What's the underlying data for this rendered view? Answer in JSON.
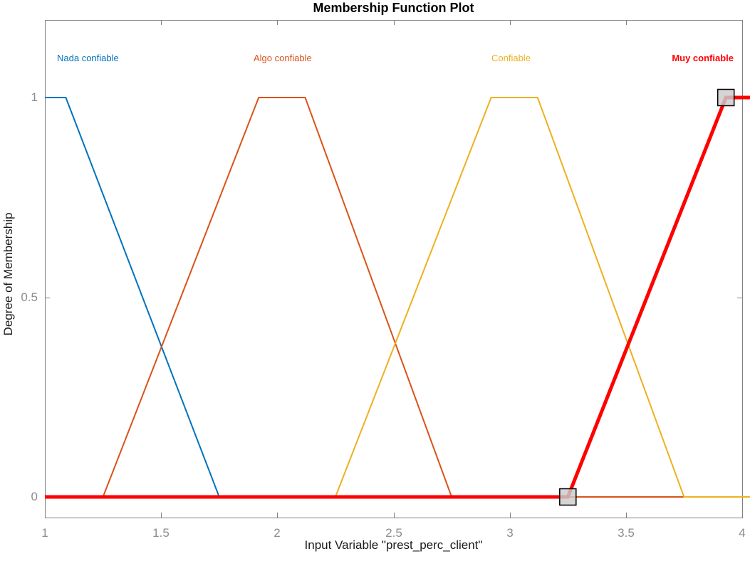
{
  "chart_data": {
    "type": "line",
    "title": "Membership Function Plot",
    "xlabel": "Input Variable \"prest_perc_client\"",
    "ylabel": "Degree of Membership",
    "xlim": [
      1,
      4
    ],
    "ylim": [
      0,
      1
    ],
    "grid": false,
    "legend_position": "labels-above-curves",
    "x_ticks": [
      {
        "v": 1,
        "label": "1"
      },
      {
        "v": 1.5,
        "label": "1.5"
      },
      {
        "v": 2,
        "label": "2"
      },
      {
        "v": 2.5,
        "label": "2.5"
      },
      {
        "v": 3,
        "label": "3"
      },
      {
        "v": 3.5,
        "label": "3.5"
      },
      {
        "v": 4,
        "label": "4"
      }
    ],
    "y_ticks": [
      {
        "v": 0,
        "label": "0"
      },
      {
        "v": 0.5,
        "label": "0.5"
      },
      {
        "v": 1,
        "label": "1"
      }
    ],
    "series": [
      {
        "name": "Nada confiable",
        "color": "#0072BD",
        "selected": false,
        "points": [
          [
            1,
            1
          ],
          [
            1.09,
            1
          ],
          [
            1.75,
            0
          ],
          [
            4,
            0
          ]
        ]
      },
      {
        "name": "Algo confiable",
        "color": "#D95319",
        "selected": false,
        "points": [
          [
            1,
            0
          ],
          [
            1.25,
            0
          ],
          [
            1.92,
            1
          ],
          [
            2.12,
            1
          ],
          [
            2.75,
            0
          ],
          [
            4,
            0
          ]
        ]
      },
      {
        "name": "Confiable",
        "color": "#EDB120",
        "selected": false,
        "points": [
          [
            1,
            0
          ],
          [
            2.25,
            0
          ],
          [
            2.92,
            1
          ],
          [
            3.12,
            1
          ],
          [
            3.75,
            0
          ],
          [
            4.04,
            0
          ]
        ]
      },
      {
        "name": "Muy confiable",
        "color": "#FF0000",
        "selected": true,
        "points": [
          [
            1,
            0
          ],
          [
            3.25,
            0
          ],
          [
            3.93,
            1
          ],
          [
            4.05,
            1
          ]
        ]
      }
    ],
    "selected_handles": [
      {
        "x": 3.25,
        "y": 0
      },
      {
        "x": 3.93,
        "y": 1
      }
    ],
    "axis_color": "#808080",
    "tick_label_color": "#8C8C8C",
    "handle_color": "#CCCCCC",
    "handle_border_color": "#000000"
  }
}
